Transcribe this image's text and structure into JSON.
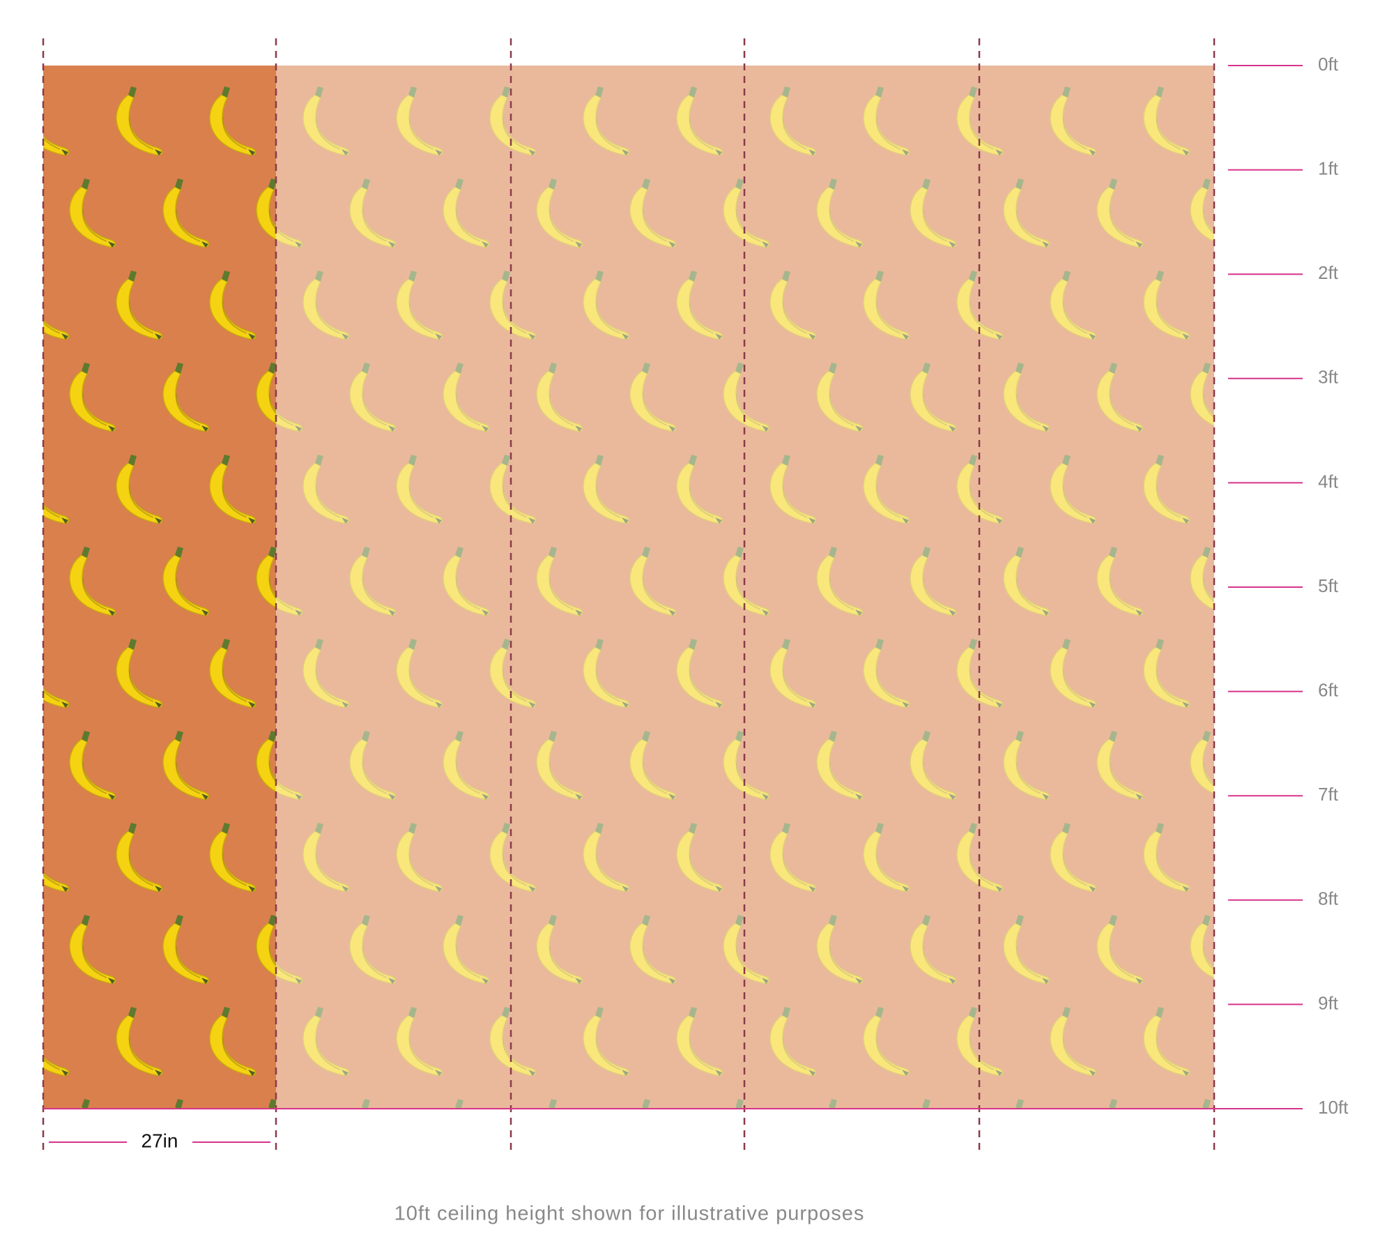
{
  "ruler": {
    "labels": [
      "0ft",
      "1ft",
      "2ft",
      "3ft",
      "4ft",
      "5ft",
      "6ft",
      "7ft",
      "8ft",
      "9ft",
      "10ft"
    ]
  },
  "panel_width": "27in",
  "caption": "10ft ceiling height shown for illustrative purposes"
}
